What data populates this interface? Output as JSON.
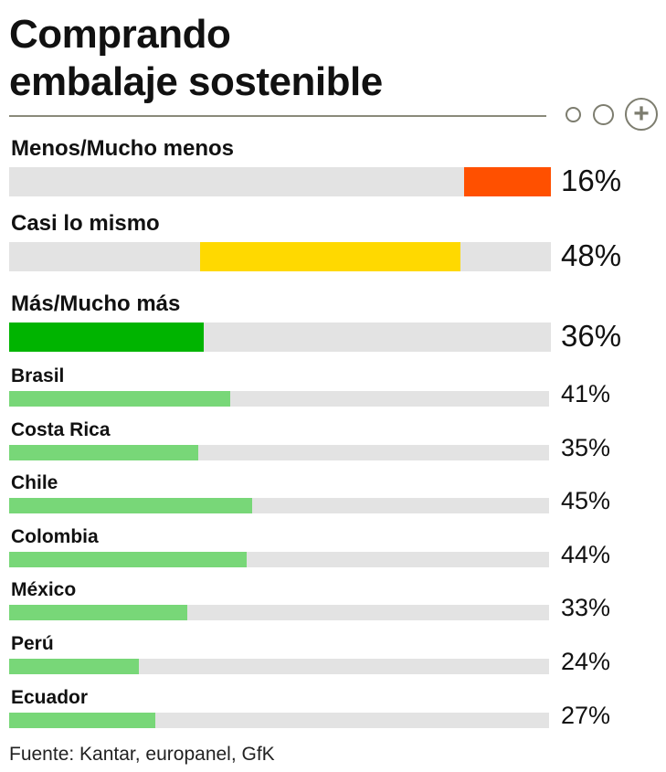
{
  "chart_data": {
    "type": "bar",
    "title": "Comprando embalaje sostenible",
    "title_lines": [
      "Comprando",
      "embalaje sostenible"
    ],
    "summary": [
      {
        "label": "Menos/Mucho menos",
        "value": 16,
        "display": "16%",
        "color": "#ff5000",
        "align": "right"
      },
      {
        "label": "Casi lo mismo",
        "value": 48,
        "display": "48%",
        "color": "#ffd900",
        "align": "center"
      },
      {
        "label": "Más/Mucho más",
        "value": 36,
        "display": "36%",
        "color": "#00b400",
        "align": "left"
      }
    ],
    "countries": [
      {
        "label": "Brasil",
        "value": 41,
        "display": "41%"
      },
      {
        "label": "Costa Rica",
        "value": 35,
        "display": "35%"
      },
      {
        "label": "Chile",
        "value": 45,
        "display": "45%"
      },
      {
        "label": "Colombia",
        "value": 44,
        "display": "44%"
      },
      {
        "label": "México",
        "value": 33,
        "display": "33%"
      },
      {
        "label": "Perú",
        "value": 24,
        "display": "24%"
      },
      {
        "label": "Ecuador",
        "value": 27,
        "display": "27%"
      }
    ],
    "country_color": "#78d778",
    "ylim": [
      0,
      100
    ],
    "source": "Fuente: Kantar, europanel, GfK"
  }
}
